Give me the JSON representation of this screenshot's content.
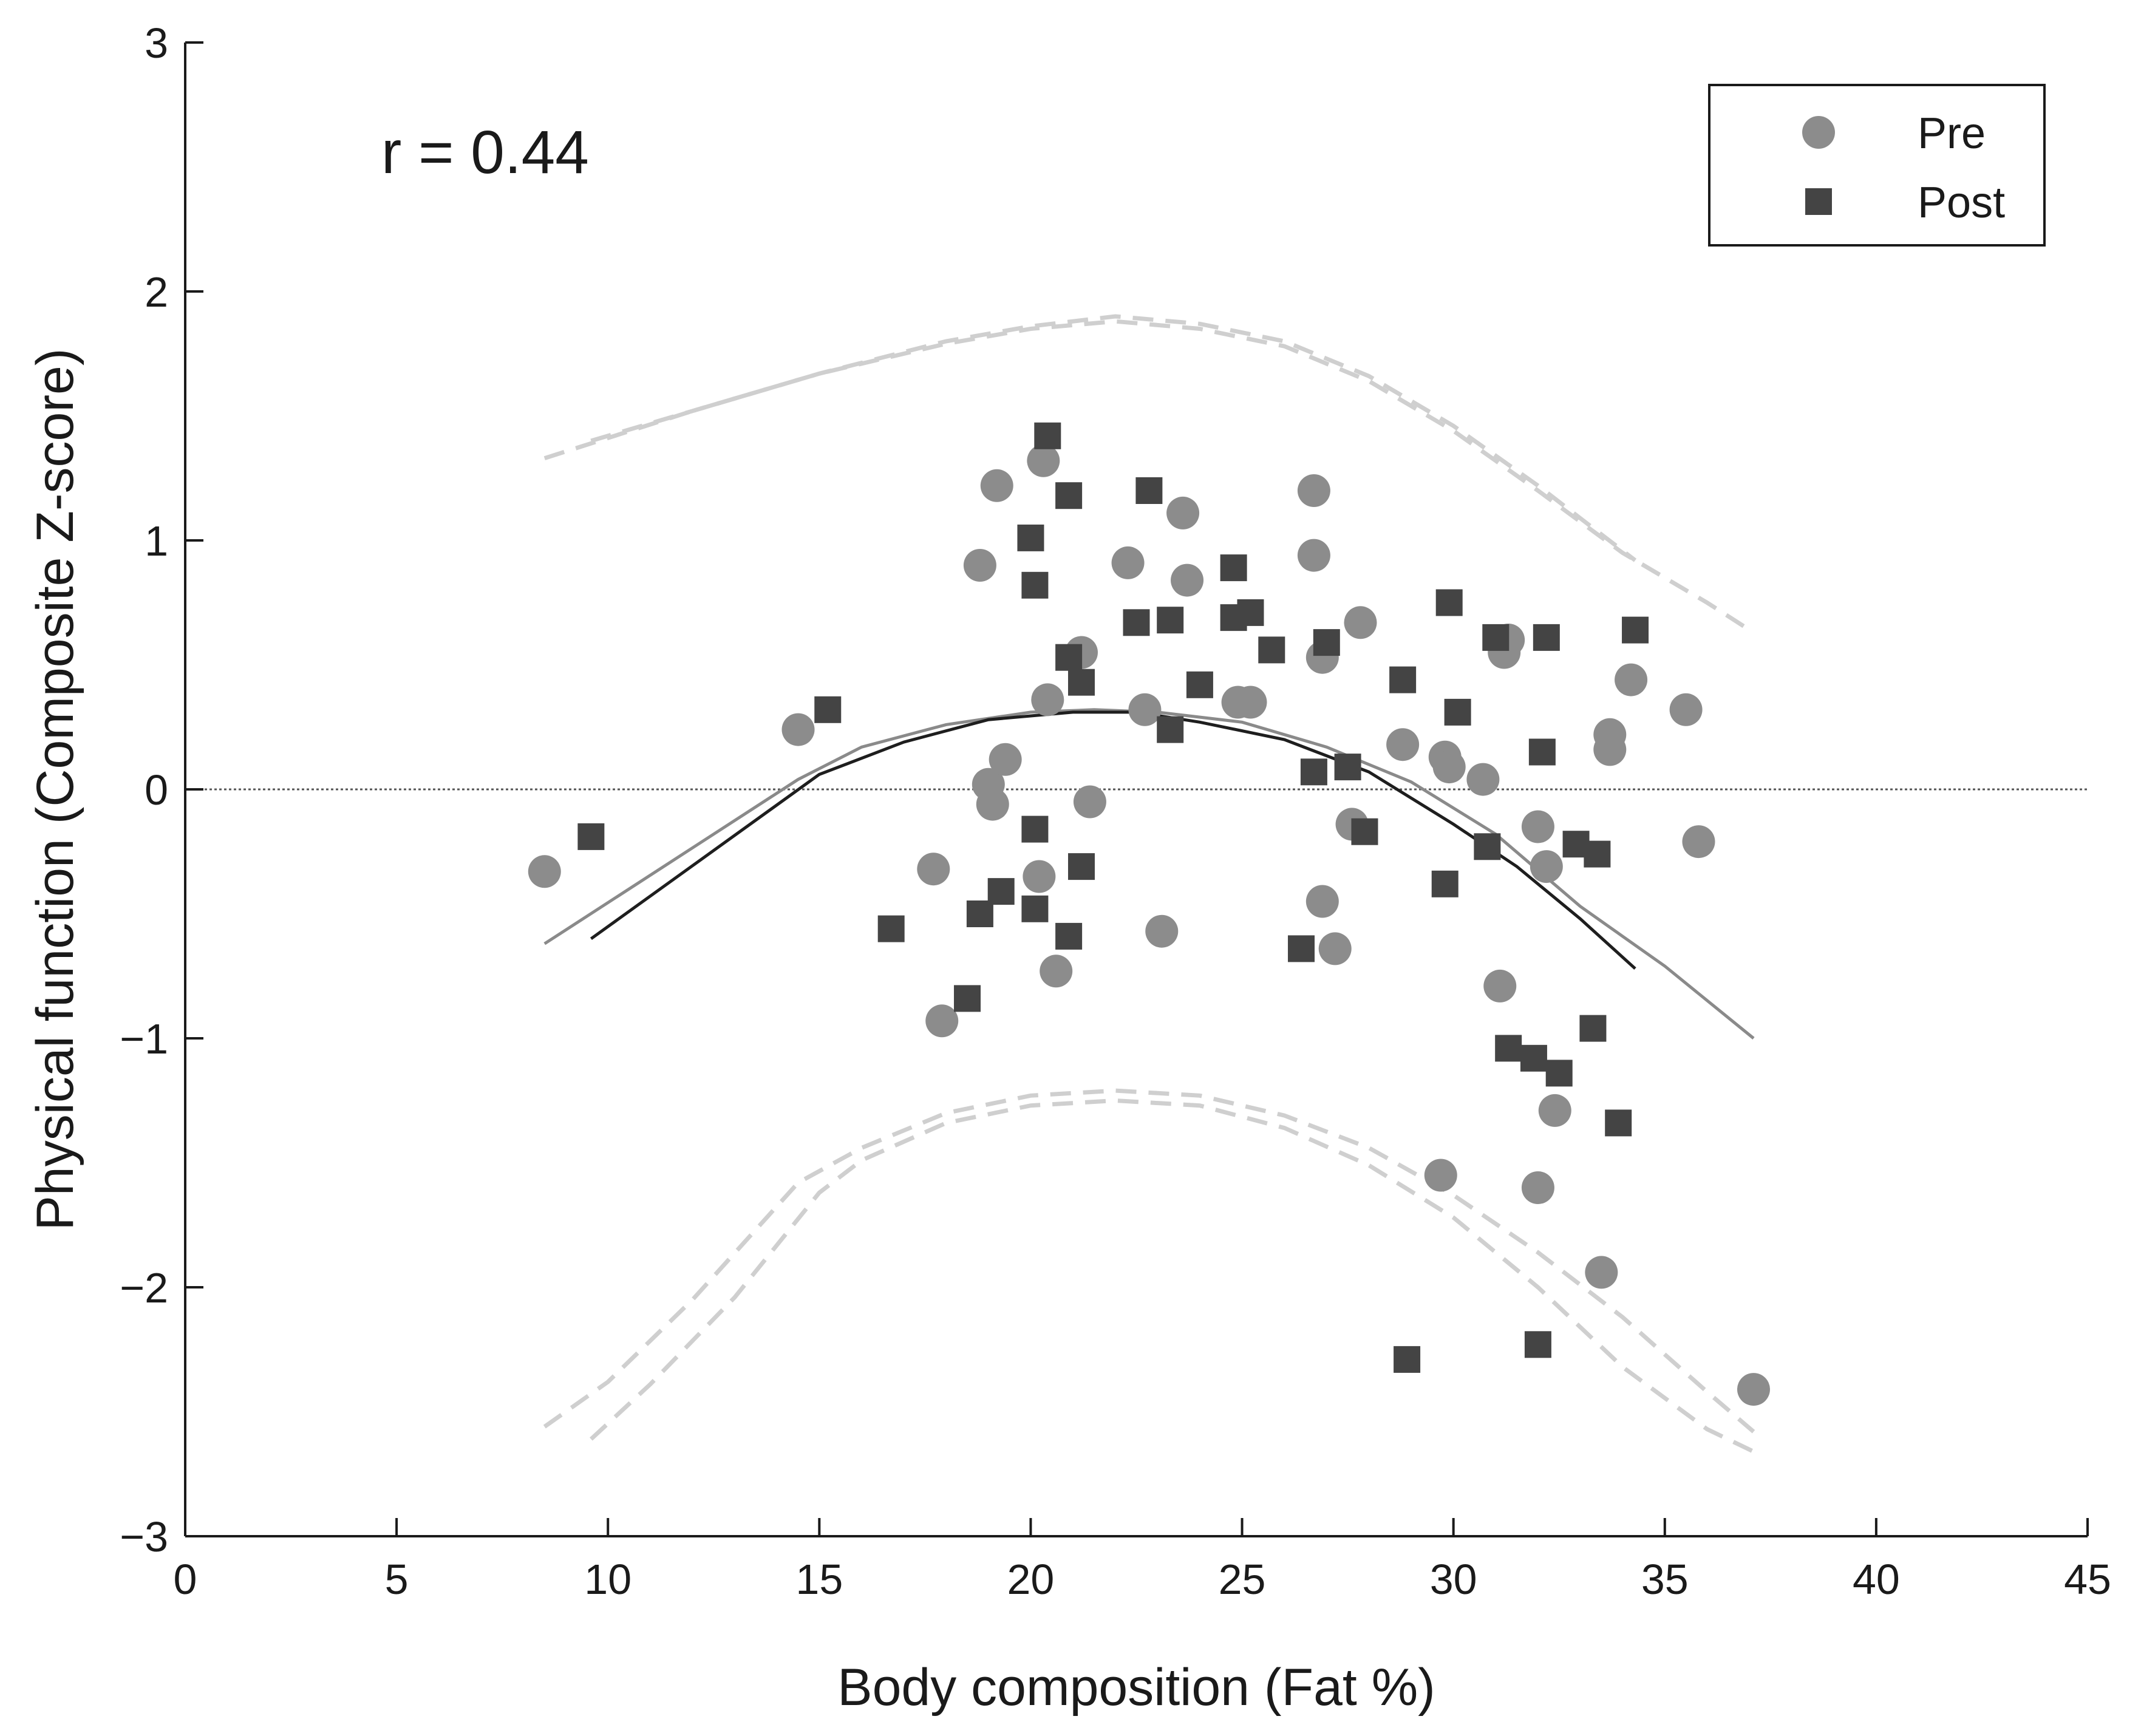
{
  "chart_data": {
    "type": "scatter",
    "xlabel": "Body composition (Fat %)",
    "ylabel": "Physical function (Composite Z-score)",
    "xlim": [
      0,
      45
    ],
    "ylim": [
      -3,
      3
    ],
    "xticks": [
      0,
      5,
      10,
      15,
      20,
      25,
      30,
      35,
      40,
      45
    ],
    "yticks": [
      -3,
      -2,
      -1,
      0,
      1,
      2,
      3
    ],
    "xtick_labels": [
      "0",
      "5",
      "10",
      "15",
      "20",
      "25",
      "30",
      "35",
      "40",
      "45"
    ],
    "ytick_labels": [
      "−3",
      "−2",
      "−1",
      "0",
      "1",
      "2",
      "3"
    ],
    "annotation": "r = 0.44",
    "reference_line_y": 0,
    "legend": {
      "placement": "top-right",
      "entries": [
        "Pre",
        "Post"
      ]
    },
    "colors": {
      "pre": "#8c8c8c",
      "post": "#444444",
      "fit_pre": "#8a8a8a",
      "fit_post": "#1e1e1e",
      "ci": "#cfcfcf",
      "axis": "#1a1a1a"
    },
    "series": [
      {
        "name": "Pre",
        "marker": "circle",
        "points": [
          [
            8.5,
            -0.33
          ],
          [
            14.5,
            0.24
          ],
          [
            17.7,
            -0.32
          ],
          [
            17.9,
            -0.93
          ],
          [
            18.8,
            0.9
          ],
          [
            19.0,
            0.02
          ],
          [
            19.1,
            -0.06
          ],
          [
            19.2,
            1.22
          ],
          [
            19.4,
            0.12
          ],
          [
            20.2,
            -0.35
          ],
          [
            20.3,
            1.32
          ],
          [
            20.4,
            0.36
          ],
          [
            20.6,
            -0.73
          ],
          [
            21.2,
            0.55
          ],
          [
            21.4,
            -0.05
          ],
          [
            22.3,
            0.91
          ],
          [
            22.7,
            0.32
          ],
          [
            23.1,
            -0.57
          ],
          [
            23.6,
            1.11
          ],
          [
            23.7,
            0.84
          ],
          [
            24.9,
            0.35
          ],
          [
            25.2,
            0.35
          ],
          [
            26.7,
            1.2
          ],
          [
            26.7,
            0.94
          ],
          [
            26.9,
            -0.45
          ],
          [
            26.9,
            0.53
          ],
          [
            27.2,
            -0.64
          ],
          [
            27.6,
            -0.14
          ],
          [
            27.8,
            0.67
          ],
          [
            28.8,
            0.18
          ],
          [
            29.7,
            -1.55
          ],
          [
            29.8,
            0.13
          ],
          [
            29.9,
            0.09
          ],
          [
            30.7,
            0.04
          ],
          [
            31.1,
            -0.79
          ],
          [
            31.2,
            0.55
          ],
          [
            31.3,
            0.6
          ],
          [
            32.0,
            -1.6
          ],
          [
            32.0,
            -0.15
          ],
          [
            32.2,
            -0.31
          ],
          [
            32.4,
            -1.29
          ],
          [
            33.5,
            -1.94
          ],
          [
            33.7,
            0.22
          ],
          [
            33.7,
            0.16
          ],
          [
            34.2,
            0.44
          ],
          [
            35.5,
            0.32
          ],
          [
            35.8,
            -0.21
          ],
          [
            37.1,
            -2.41
          ]
        ]
      },
      {
        "name": "Post",
        "marker": "square",
        "points": [
          [
            9.6,
            -0.19
          ],
          [
            15.2,
            0.32
          ],
          [
            16.7,
            -0.56
          ],
          [
            18.5,
            -0.84
          ],
          [
            18.8,
            -0.5
          ],
          [
            19.3,
            -0.41
          ],
          [
            20.0,
            1.01
          ],
          [
            20.1,
            -0.16
          ],
          [
            20.1,
            0.82
          ],
          [
            20.1,
            -0.48
          ],
          [
            20.4,
            1.42
          ],
          [
            20.9,
            0.53
          ],
          [
            20.9,
            1.18
          ],
          [
            20.9,
            -0.59
          ],
          [
            21.2,
            0.43
          ],
          [
            21.2,
            -0.31
          ],
          [
            22.5,
            0.67
          ],
          [
            22.8,
            1.2
          ],
          [
            23.3,
            0.68
          ],
          [
            23.3,
            0.24
          ],
          [
            24.0,
            0.42
          ],
          [
            24.8,
            0.89
          ],
          [
            24.8,
            0.69
          ],
          [
            25.2,
            0.71
          ],
          [
            25.7,
            0.56
          ],
          [
            26.4,
            -0.64
          ],
          [
            26.7,
            0.07
          ],
          [
            27.0,
            0.59
          ],
          [
            27.5,
            0.09
          ],
          [
            27.9,
            -0.17
          ],
          [
            28.8,
            0.44
          ],
          [
            28.9,
            -2.29
          ],
          [
            29.8,
            -0.38
          ],
          [
            29.9,
            0.75
          ],
          [
            30.1,
            0.31
          ],
          [
            30.8,
            -0.23
          ],
          [
            31.0,
            0.61
          ],
          [
            31.3,
            -1.04
          ],
          [
            31.9,
            -1.08
          ],
          [
            32.0,
            -2.23
          ],
          [
            32.1,
            0.15
          ],
          [
            32.2,
            0.61
          ],
          [
            32.5,
            -1.14
          ],
          [
            32.9,
            -0.22
          ],
          [
            33.3,
            -0.96
          ],
          [
            33.4,
            -0.26
          ],
          [
            33.9,
            -1.34
          ],
          [
            34.3,
            0.64
          ]
        ]
      }
    ],
    "fit_curves": [
      {
        "series": "Pre",
        "style": "solid",
        "points": [
          [
            8.5,
            -0.62
          ],
          [
            14.5,
            0.04
          ],
          [
            16,
            0.17
          ],
          [
            18,
            0.26
          ],
          [
            20,
            0.31
          ],
          [
            21.5,
            0.32
          ],
          [
            23,
            0.31
          ],
          [
            25,
            0.27
          ],
          [
            27,
            0.17
          ],
          [
            29,
            0.03
          ],
          [
            31,
            -0.18
          ],
          [
            33,
            -0.47
          ],
          [
            35,
            -0.71
          ],
          [
            37.1,
            -1.0
          ]
        ]
      },
      {
        "series": "Post",
        "style": "solid",
        "points": [
          [
            9.6,
            -0.6
          ],
          [
            15.0,
            0.06
          ],
          [
            17,
            0.19
          ],
          [
            19,
            0.28
          ],
          [
            21,
            0.31
          ],
          [
            22.5,
            0.31
          ],
          [
            24,
            0.27
          ],
          [
            26,
            0.2
          ],
          [
            28,
            0.07
          ],
          [
            30,
            -0.14
          ],
          [
            31.5,
            -0.31
          ],
          [
            33,
            -0.52
          ],
          [
            34.3,
            -0.72
          ]
        ]
      }
    ],
    "confidence_bands": [
      {
        "series": "Pre",
        "bound": "upper",
        "points": [
          [
            8.5,
            1.33
          ],
          [
            12,
            1.52
          ],
          [
            15,
            1.67
          ],
          [
            18,
            1.79
          ],
          [
            20,
            1.85
          ],
          [
            22,
            1.88
          ],
          [
            24,
            1.85
          ],
          [
            26,
            1.78
          ],
          [
            28,
            1.64
          ],
          [
            30,
            1.44
          ],
          [
            32,
            1.2
          ],
          [
            34,
            0.95
          ],
          [
            36,
            0.75
          ],
          [
            37.1,
            0.63
          ]
        ]
      },
      {
        "series": "Post",
        "bound": "upper",
        "points": [
          [
            9.6,
            1.4
          ],
          [
            12,
            1.52
          ],
          [
            15,
            1.67
          ],
          [
            18,
            1.8
          ],
          [
            20,
            1.86
          ],
          [
            22,
            1.9
          ],
          [
            24,
            1.87
          ],
          [
            26,
            1.8
          ],
          [
            28,
            1.66
          ],
          [
            30,
            1.46
          ],
          [
            32,
            1.22
          ],
          [
            33.3,
            1.05
          ],
          [
            34.3,
            0.92
          ]
        ]
      },
      {
        "series": "Pre",
        "bound": "lower",
        "points": [
          [
            8.5,
            -2.56
          ],
          [
            10,
            -2.38
          ],
          [
            12,
            -2.05
          ],
          [
            14.5,
            -1.58
          ],
          [
            16,
            -1.44
          ],
          [
            18,
            -1.3
          ],
          [
            20,
            -1.23
          ],
          [
            22,
            -1.21
          ],
          [
            24,
            -1.23
          ],
          [
            26,
            -1.31
          ],
          [
            28,
            -1.44
          ],
          [
            30,
            -1.63
          ],
          [
            32,
            -1.86
          ],
          [
            34,
            -2.12
          ],
          [
            36,
            -2.42
          ],
          [
            37.1,
            -2.58
          ]
        ]
      },
      {
        "series": "Post",
        "bound": "lower",
        "points": [
          [
            9.6,
            -2.61
          ],
          [
            11,
            -2.39
          ],
          [
            13,
            -2.04
          ],
          [
            15,
            -1.62
          ],
          [
            16,
            -1.49
          ],
          [
            18,
            -1.34
          ],
          [
            20,
            -1.27
          ],
          [
            22,
            -1.25
          ],
          [
            24,
            -1.27
          ],
          [
            26,
            -1.36
          ],
          [
            28,
            -1.51
          ],
          [
            30,
            -1.72
          ],
          [
            32,
            -2.0
          ],
          [
            34,
            -2.32
          ],
          [
            36,
            -2.57
          ],
          [
            37.1,
            -2.66
          ]
        ]
      }
    ]
  }
}
